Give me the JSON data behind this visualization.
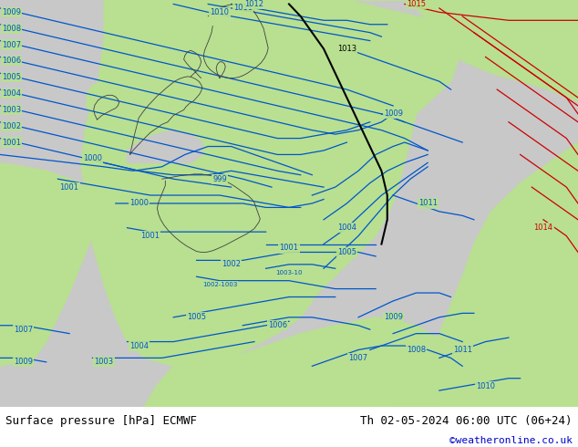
{
  "title_left": "Surface pressure [hPa] ECMWF",
  "title_right": "Th 02-05-2024 06:00 UTC (06+24)",
  "credit": "©weatheronline.co.uk",
  "land_green": "#b8e090",
  "sea_gray": "#c8c8c8",
  "bg_top_gray": "#d0d0d0",
  "white_bg": "#ffffff",
  "blue_iso": "#0055cc",
  "red_iso": "#cc0000",
  "black_iso": "#000000",
  "credit_color": "#0000cc",
  "figsize": [
    6.34,
    4.9
  ],
  "dpi": 100
}
